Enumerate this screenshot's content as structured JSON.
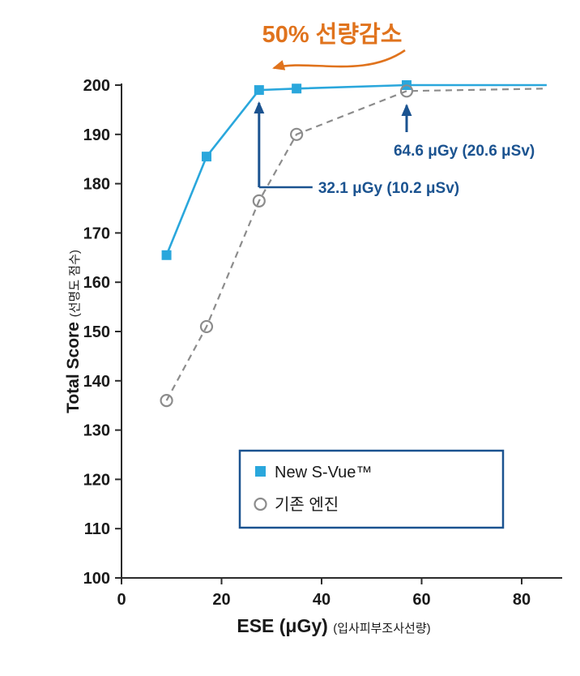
{
  "chart_data": {
    "type": "line",
    "title": "50% 선량감소",
    "title_color": "#E0731D",
    "xlabel": "ESE (μGy)",
    "xlabel_sub": "(입사피부조사선량)",
    "ylabel": "Total Score",
    "ylabel_sub": "(선명도 점수)",
    "xlim": [
      0,
      85
    ],
    "ylim": [
      100,
      200
    ],
    "xticks": [
      0,
      20,
      40,
      60,
      80
    ],
    "yticks": [
      100,
      110,
      120,
      130,
      140,
      150,
      160,
      170,
      180,
      190,
      200
    ],
    "grid": false,
    "legend_position": "inside-bottom",
    "axis_color": "#2b2b2b",
    "text_color": "#1a1a1a",
    "annotation_color": "#1B5390",
    "series": [
      {
        "name": "New S-Vue™",
        "color": "#2AA7DC",
        "marker": "filled-square",
        "line_style": "solid",
        "points": [
          [
            9,
            165.5
          ],
          [
            17,
            185.5
          ],
          [
            27.5,
            199
          ],
          [
            35,
            199.3
          ],
          [
            57,
            200
          ],
          [
            85,
            200
          ]
        ],
        "markers_on_first": 5
      },
      {
        "name": "기존 엔진",
        "color": "#8C8C8C",
        "marker": "open-circle",
        "line_style": "dashed",
        "points": [
          [
            9,
            136
          ],
          [
            17,
            151
          ],
          [
            27.5,
            176.5
          ],
          [
            35,
            190
          ],
          [
            57,
            198.8
          ],
          [
            85,
            199.3
          ]
        ],
        "markers_on_first": 5
      }
    ],
    "annotations": [
      {
        "text": "32.1 μGy (10.2 μSv)",
        "x": 27.5,
        "y": 199,
        "style": "elbow-right"
      },
      {
        "text": "64.6 μGy (20.6 μSv)",
        "x": 57,
        "y": 200,
        "style": "below"
      }
    ]
  }
}
